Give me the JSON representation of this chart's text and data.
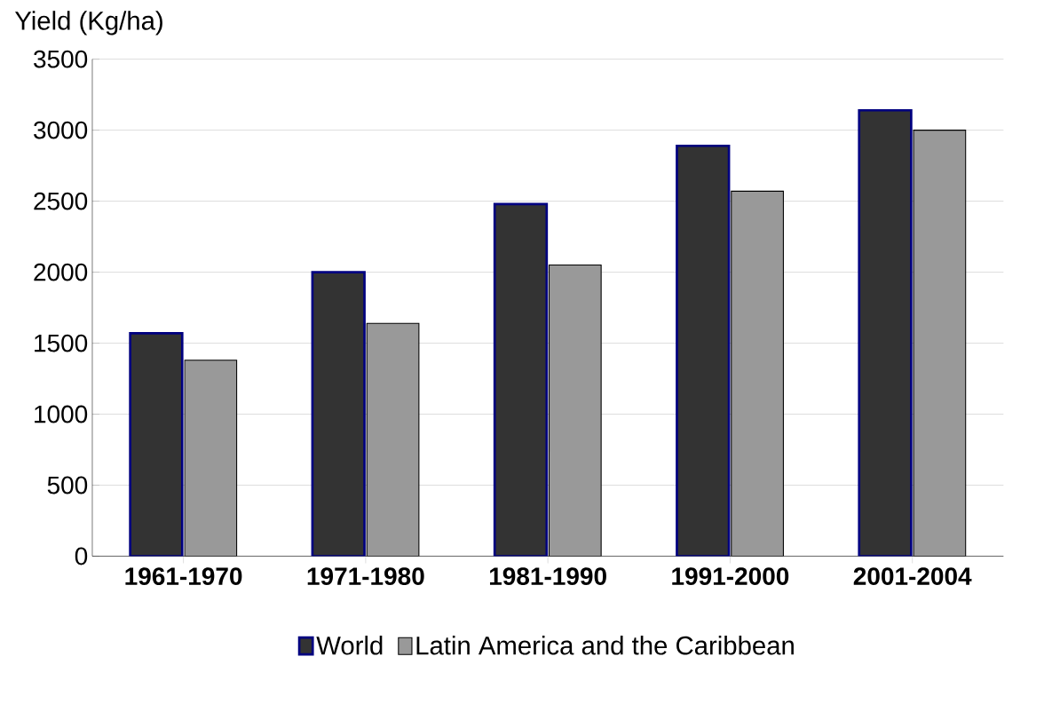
{
  "chart_data": {
    "type": "bar",
    "ylabel": "Yield (Kg/ha)",
    "categories": [
      "1961-1970",
      "1971-1980",
      "1981-1990",
      "1991-2000",
      "2001-2004"
    ],
    "series": [
      {
        "name": "World",
        "color": "#333333",
        "values": [
          1570,
          2000,
          2480,
          2890,
          3140
        ]
      },
      {
        "name": "Latin America and the Caribbean",
        "color": "#999999",
        "values": [
          1380,
          1640,
          2050,
          2570,
          3000
        ]
      }
    ],
    "ylim": [
      0,
      3500
    ],
    "yticks": [
      0,
      500,
      1000,
      1500,
      2000,
      2500,
      3000,
      3500
    ],
    "grid": "y",
    "legend": "bottom"
  }
}
